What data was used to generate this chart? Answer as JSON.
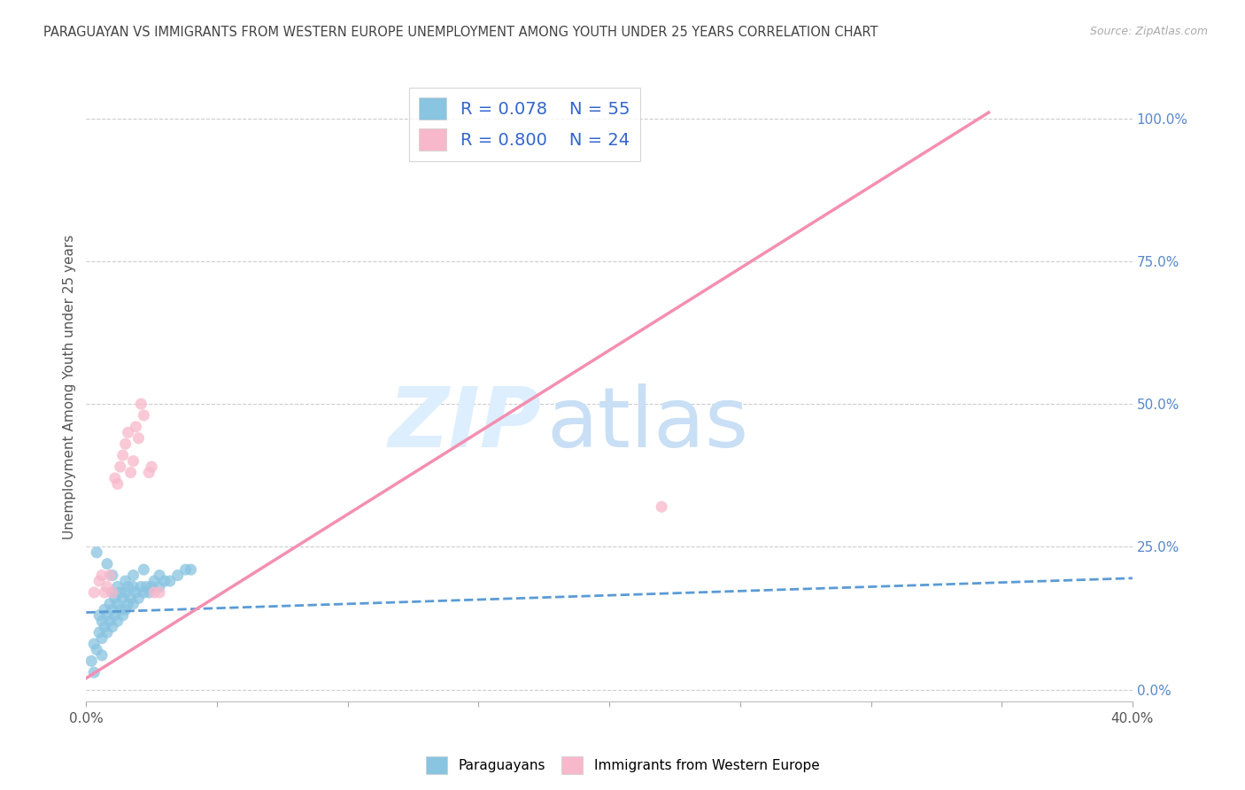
{
  "title": "PARAGUAYAN VS IMMIGRANTS FROM WESTERN EUROPE UNEMPLOYMENT AMONG YOUTH UNDER 25 YEARS CORRELATION CHART",
  "source": "Source: ZipAtlas.com",
  "ylabel": "Unemployment Among Youth under 25 years",
  "watermark": "ZIPatlas",
  "xlim": [
    0.0,
    0.4
  ],
  "ylim": [
    -0.02,
    1.08
  ],
  "ytick_labels_right": [
    "0.0%",
    "25.0%",
    "50.0%",
    "75.0%",
    "100.0%"
  ],
  "ytick_vals_right": [
    0.0,
    0.25,
    0.5,
    0.75,
    1.0
  ],
  "legend_r1": "R = 0.078",
  "legend_n1": "N = 55",
  "legend_r2": "R = 0.800",
  "legend_n2": "N = 24",
  "blue_color": "#89c4e1",
  "pink_color": "#f7b8cb",
  "blue_line_color": "#5b9bd5",
  "pink_line_color": "#f48fb1",
  "r_n_color": "#3366cc",
  "title_color": "#444444",
  "source_color": "#aaaaaa",
  "right_axis_color": "#5588cc",
  "watermark_color": "#ddeeff",
  "blue_scatter_x": [
    0.002,
    0.003,
    0.004,
    0.005,
    0.005,
    0.006,
    0.006,
    0.007,
    0.007,
    0.008,
    0.008,
    0.009,
    0.009,
    0.01,
    0.01,
    0.01,
    0.011,
    0.011,
    0.012,
    0.012,
    0.013,
    0.013,
    0.014,
    0.014,
    0.015,
    0.015,
    0.016,
    0.016,
    0.017,
    0.018,
    0.018,
    0.019,
    0.02,
    0.021,
    0.022,
    0.023,
    0.024,
    0.025,
    0.026,
    0.028,
    0.03,
    0.032,
    0.035,
    0.038,
    0.04,
    0.003,
    0.004,
    0.006,
    0.008,
    0.01,
    0.012,
    0.015,
    0.018,
    0.022,
    0.028
  ],
  "blue_scatter_y": [
    0.05,
    0.08,
    0.07,
    0.1,
    0.13,
    0.09,
    0.12,
    0.11,
    0.14,
    0.1,
    0.13,
    0.12,
    0.15,
    0.11,
    0.14,
    0.17,
    0.13,
    0.16,
    0.12,
    0.15,
    0.14,
    0.17,
    0.13,
    0.16,
    0.14,
    0.17,
    0.15,
    0.18,
    0.16,
    0.15,
    0.18,
    0.17,
    0.16,
    0.18,
    0.17,
    0.18,
    0.17,
    0.18,
    0.19,
    0.18,
    0.19,
    0.19,
    0.2,
    0.21,
    0.21,
    0.03,
    0.24,
    0.06,
    0.22,
    0.2,
    0.18,
    0.19,
    0.2,
    0.21,
    0.2
  ],
  "pink_scatter_x": [
    0.003,
    0.005,
    0.006,
    0.007,
    0.008,
    0.009,
    0.01,
    0.011,
    0.012,
    0.013,
    0.014,
    0.015,
    0.016,
    0.017,
    0.018,
    0.019,
    0.02,
    0.021,
    0.022,
    0.024,
    0.025,
    0.026,
    0.028,
    0.22
  ],
  "pink_scatter_y": [
    0.17,
    0.19,
    0.2,
    0.17,
    0.18,
    0.2,
    0.17,
    0.37,
    0.36,
    0.39,
    0.41,
    0.43,
    0.45,
    0.38,
    0.4,
    0.46,
    0.44,
    0.5,
    0.48,
    0.38,
    0.39,
    0.17,
    0.17,
    0.32
  ],
  "blue_trend_x": [
    0.0,
    0.4
  ],
  "blue_trend_y": [
    0.135,
    0.195
  ],
  "pink_trend_x": [
    0.0,
    0.345
  ],
  "pink_trend_y": [
    0.02,
    1.01
  ],
  "bg_color": "#ffffff",
  "grid_color": "#cccccc",
  "scatter_size": 90
}
